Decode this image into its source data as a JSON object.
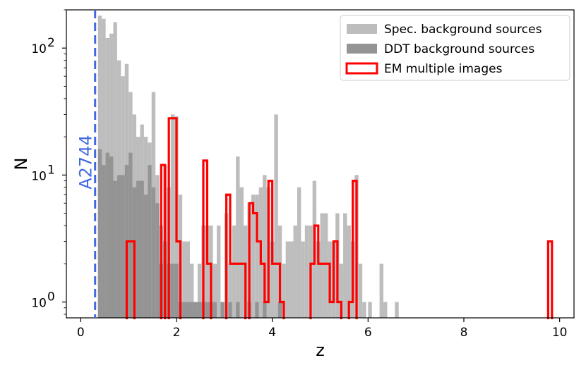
{
  "chart_data": {
    "type": "bar",
    "xlabel": "z",
    "ylabel": "N",
    "xlim": [
      -0.3,
      10.3
    ],
    "ylim": [
      0.75,
      200
    ],
    "y_scale": "log",
    "x_ticks": [
      0,
      2,
      4,
      6,
      8,
      10
    ],
    "y_ticks": [
      {
        "value": 1,
        "label": "10",
        "exp": "0"
      },
      {
        "value": 10,
        "label": "10",
        "exp": "1"
      },
      {
        "value": 100,
        "label": "10",
        "exp": "2"
      }
    ],
    "grid": false,
    "legend_position": "top-right",
    "bin_width": 0.08,
    "series": [
      {
        "name": "Spec. background sources",
        "style": "filled",
        "color": "#bdbdbd",
        "bins": [
          [
            0.36,
            180
          ],
          [
            0.44,
            170
          ],
          [
            0.52,
            120
          ],
          [
            0.6,
            130
          ],
          [
            0.68,
            160
          ],
          [
            0.76,
            80
          ],
          [
            0.84,
            60
          ],
          [
            0.92,
            75
          ],
          [
            1.0,
            45
          ],
          [
            1.08,
            30
          ],
          [
            1.16,
            20
          ],
          [
            1.24,
            25
          ],
          [
            1.32,
            20
          ],
          [
            1.4,
            18
          ],
          [
            1.48,
            45
          ],
          [
            1.56,
            10
          ],
          [
            1.64,
            4
          ],
          [
            1.72,
            12
          ],
          [
            1.8,
            8
          ],
          [
            1.88,
            30
          ],
          [
            1.96,
            29
          ],
          [
            2.04,
            7
          ],
          [
            2.12,
            3
          ],
          [
            2.2,
            3
          ],
          [
            2.28,
            2
          ],
          [
            2.36,
            1
          ],
          [
            2.44,
            2
          ],
          [
            2.52,
            4
          ],
          [
            2.6,
            4
          ],
          [
            2.68,
            4
          ],
          [
            2.76,
            2
          ],
          [
            2.84,
            4
          ],
          [
            2.92,
            1
          ],
          [
            3.0,
            5
          ],
          [
            3.08,
            2
          ],
          [
            3.16,
            4
          ],
          [
            3.24,
            14
          ],
          [
            3.32,
            8
          ],
          [
            3.4,
            4
          ],
          [
            3.48,
            6
          ],
          [
            3.56,
            7
          ],
          [
            3.64,
            7
          ],
          [
            3.72,
            8
          ],
          [
            3.8,
            10
          ],
          [
            3.88,
            8
          ],
          [
            3.96,
            3
          ],
          [
            4.04,
            30
          ],
          [
            4.12,
            4
          ],
          [
            4.2,
            2
          ],
          [
            4.28,
            3
          ],
          [
            4.36,
            3
          ],
          [
            4.44,
            4
          ],
          [
            4.52,
            8
          ],
          [
            4.6,
            3
          ],
          [
            4.68,
            4
          ],
          [
            4.76,
            4
          ],
          [
            4.84,
            9
          ],
          [
            4.92,
            3
          ],
          [
            5.0,
            5
          ],
          [
            5.08,
            5
          ],
          [
            5.16,
            3
          ],
          [
            5.24,
            3
          ],
          [
            5.32,
            5
          ],
          [
            5.4,
            2
          ],
          [
            5.48,
            5
          ],
          [
            5.56,
            4
          ],
          [
            5.64,
            3
          ],
          [
            5.72,
            10
          ],
          [
            5.8,
            2
          ],
          [
            5.88,
            1
          ],
          [
            6.0,
            1
          ],
          [
            6.24,
            2
          ],
          [
            6.32,
            1
          ],
          [
            6.56,
            1
          ]
        ]
      },
      {
        "name": "DDT background sources",
        "style": "filled",
        "color": "#949494",
        "bins": [
          [
            0.36,
            16
          ],
          [
            0.44,
            12
          ],
          [
            0.52,
            15
          ],
          [
            0.6,
            14
          ],
          [
            0.68,
            9
          ],
          [
            0.76,
            10
          ],
          [
            0.84,
            10
          ],
          [
            0.92,
            12
          ],
          [
            1.0,
            15
          ],
          [
            1.08,
            8
          ],
          [
            1.16,
            9
          ],
          [
            1.24,
            9
          ],
          [
            1.32,
            7
          ],
          [
            1.4,
            12
          ],
          [
            1.48,
            8
          ],
          [
            1.56,
            6
          ],
          [
            1.64,
            2
          ],
          [
            1.72,
            3
          ],
          [
            1.8,
            2
          ],
          [
            1.88,
            2
          ],
          [
            1.96,
            2
          ],
          [
            2.04,
            1
          ],
          [
            2.12,
            1
          ],
          [
            2.2,
            1
          ],
          [
            2.28,
            1
          ],
          [
            2.36,
            1
          ],
          [
            2.44,
            1
          ],
          [
            2.52,
            1
          ],
          [
            2.6,
            1
          ],
          [
            2.68,
            1
          ],
          [
            2.76,
            1
          ],
          [
            2.92,
            1
          ],
          [
            3.08,
            1
          ],
          [
            3.24,
            1
          ],
          [
            3.48,
            1
          ],
          [
            3.64,
            1
          ],
          [
            3.8,
            1
          ],
          [
            4.12,
            1
          ]
        ]
      },
      {
        "name": "EM multiple images",
        "style": "step",
        "color": "#ff0000",
        "bins": [
          [
            0.96,
            3
          ],
          [
            1.04,
            3
          ],
          [
            1.68,
            12
          ],
          [
            1.84,
            28
          ],
          [
            1.92,
            28
          ],
          [
            2.0,
            3
          ],
          [
            2.56,
            13
          ],
          [
            2.64,
            2
          ],
          [
            3.04,
            7
          ],
          [
            3.12,
            2
          ],
          [
            3.2,
            2
          ],
          [
            3.28,
            2
          ],
          [
            3.36,
            2
          ],
          [
            3.52,
            6
          ],
          [
            3.6,
            5
          ],
          [
            3.68,
            3
          ],
          [
            3.76,
            2
          ],
          [
            3.84,
            1
          ],
          [
            3.92,
            9
          ],
          [
            4.0,
            2
          ],
          [
            4.08,
            2
          ],
          [
            4.16,
            1
          ],
          [
            4.8,
            2
          ],
          [
            4.88,
            4
          ],
          [
            4.96,
            2
          ],
          [
            5.04,
            2
          ],
          [
            5.12,
            2
          ],
          [
            5.2,
            1
          ],
          [
            5.28,
            3
          ],
          [
            5.36,
            1
          ],
          [
            5.6,
            1
          ],
          [
            5.68,
            9
          ],
          [
            9.76,
            3
          ]
        ]
      }
    ],
    "annotations": [
      {
        "type": "vline",
        "x": 0.3,
        "style": "dashed",
        "color": "#4169e1",
        "text": "A2744"
      }
    ]
  }
}
